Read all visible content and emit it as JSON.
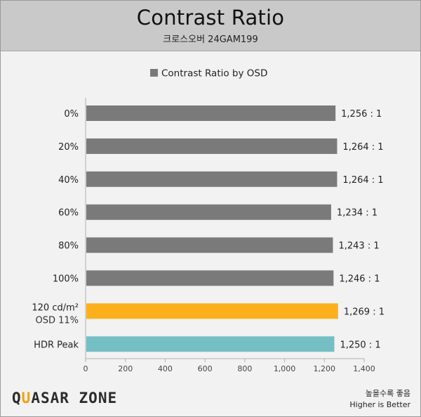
{
  "header": {
    "title": "Contrast Ratio",
    "subtitle": "크로스오버 24GAM199"
  },
  "chart_data": {
    "type": "bar",
    "orientation": "horizontal",
    "title": "Contrast Ratio",
    "subtitle": "크로스오버 24GAM199",
    "legend": {
      "label": "Contrast Ratio by OSD",
      "placement": "top-center",
      "color": "#7a7a7a"
    },
    "categories": [
      {
        "label": "0%",
        "sublabel": ""
      },
      {
        "label": "20%",
        "sublabel": ""
      },
      {
        "label": "40%",
        "sublabel": ""
      },
      {
        "label": "60%",
        "sublabel": ""
      },
      {
        "label": "80%",
        "sublabel": ""
      },
      {
        "label": "100%",
        "sublabel": ""
      },
      {
        "label": "120 cd/m²",
        "sublabel": "OSD 11%"
      },
      {
        "label": "HDR Peak",
        "sublabel": ""
      }
    ],
    "values": [
      1256,
      1264,
      1264,
      1234,
      1243,
      1246,
      1269,
      1250
    ],
    "value_labels": [
      "1,256 : 1",
      "1,264 : 1",
      "1,264 : 1",
      "1,234 : 1",
      "1,243 : 1",
      "1,246 : 1",
      "1,269 : 1",
      "1,250 : 1"
    ],
    "bar_colors": [
      "#7a7a7a",
      "#7a7a7a",
      "#7a7a7a",
      "#7a7a7a",
      "#7a7a7a",
      "#7a7a7a",
      "#fbb01b",
      "#74bfc4"
    ],
    "xlim": [
      0,
      1400
    ],
    "xticks": [
      0,
      200,
      400,
      600,
      800,
      1000,
      1200,
      1400
    ],
    "xtick_labels": [
      "0",
      "200",
      "400",
      "600",
      "800",
      "1,000",
      "1,200",
      "1,400"
    ],
    "grid": false
  },
  "footer": {
    "logo_prefix": "Q",
    "logo_highlight": "U",
    "logo_rest": "ASAR ZONE",
    "note_line1": "높을수록 좋음",
    "note_line2": "Higher is Better"
  }
}
